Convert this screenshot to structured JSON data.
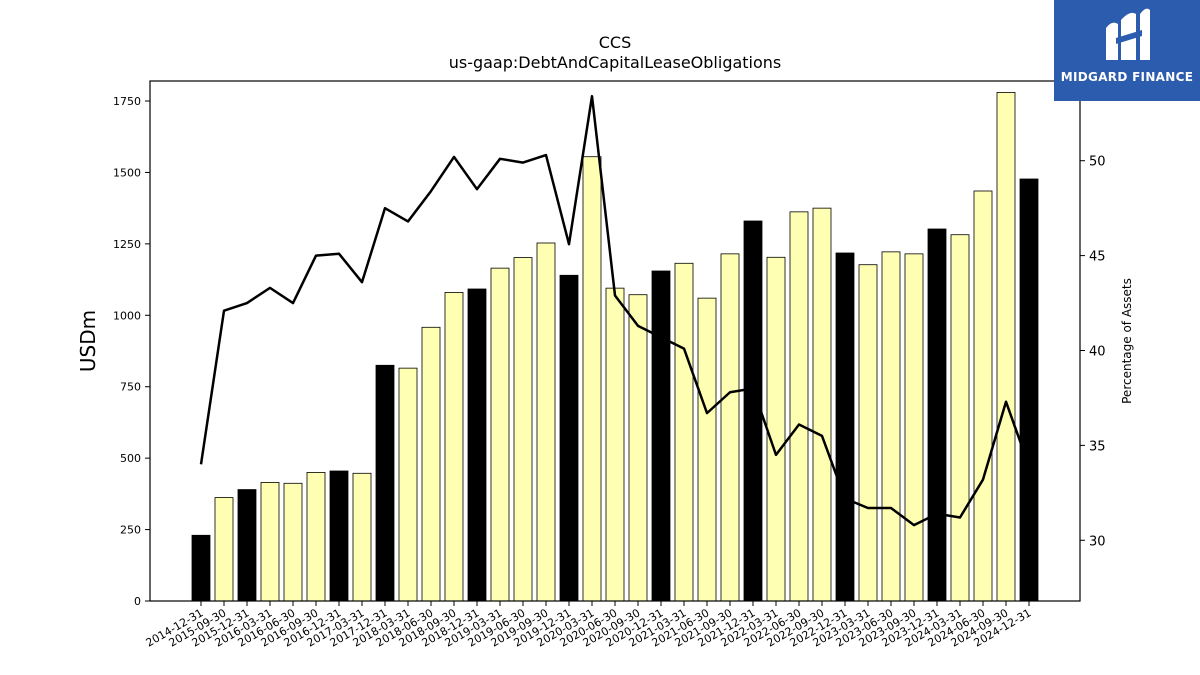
{
  "chart_data": {
    "type": "bar",
    "title": "CCS",
    "subtitle": "us-gaap:DebtAndCapitalLeaseObligations",
    "ylabel": "USDm",
    "y2label": "Percentage of Assets",
    "ylim": [
      0,
      1820
    ],
    "y2lim": [
      26.8,
      54.2
    ],
    "yticks": [
      0,
      250,
      500,
      750,
      1000,
      1250,
      1500,
      1750
    ],
    "y2ticks": [
      30,
      35,
      40,
      45,
      50
    ],
    "colors": {
      "year_end": "#000000",
      "quarter": "#ffffb3",
      "edge": "#000000",
      "line": "#000000",
      "brand": "#2b5cad"
    },
    "categories": [
      "2014-12-31",
      "2015-09-30",
      "2015-12-31",
      "2016-03-31",
      "2016-06-30",
      "2016-09-30",
      "2016-12-31",
      "2017-03-31",
      "2017-12-31",
      "2018-03-31",
      "2018-06-30",
      "2018-09-30",
      "2018-12-31",
      "2019-03-31",
      "2019-06-30",
      "2019-09-30",
      "2019-12-31",
      "2020-03-31",
      "2020-06-30",
      "2020-09-30",
      "2020-12-31",
      "2021-03-31",
      "2021-06-30",
      "2021-09-30",
      "2021-12-31",
      "2022-03-31",
      "2022-06-30",
      "2022-09-30",
      "2022-12-31",
      "2023-03-31",
      "2023-06-30",
      "2023-09-30",
      "2023-12-31",
      "2024-03-31",
      "2024-06-30",
      "2024-09-30",
      "2024-12-31"
    ],
    "series": [
      {
        "type": "bar",
        "values": [
          230,
          362,
          390,
          415,
          412,
          450,
          455,
          447,
          825,
          815,
          958,
          1080,
          1092,
          1165,
          1202,
          1253,
          1140,
          1555,
          1095,
          1072,
          1155,
          1182,
          1060,
          1215,
          1330,
          1203,
          1362,
          1375,
          1218,
          1177,
          1222,
          1215,
          1302,
          1282,
          1435,
          1780,
          1477
        ]
      },
      {
        "type": "line",
        "axis": "right",
        "values": [
          34.0,
          42.1,
          42.5,
          43.3,
          42.5,
          45.0,
          45.1,
          43.6,
          47.5,
          46.8,
          48.4,
          50.2,
          48.5,
          50.1,
          49.9,
          50.3,
          45.6,
          53.4,
          42.9,
          41.3,
          40.7,
          40.1,
          36.7,
          37.8,
          38.0,
          34.5,
          36.1,
          35.5,
          32.2,
          31.7,
          31.7,
          30.8,
          31.4,
          31.2,
          33.2,
          37.3,
          33.9
        ]
      }
    ]
  },
  "logo": {
    "name": "MIDGARD FINANCE"
  }
}
